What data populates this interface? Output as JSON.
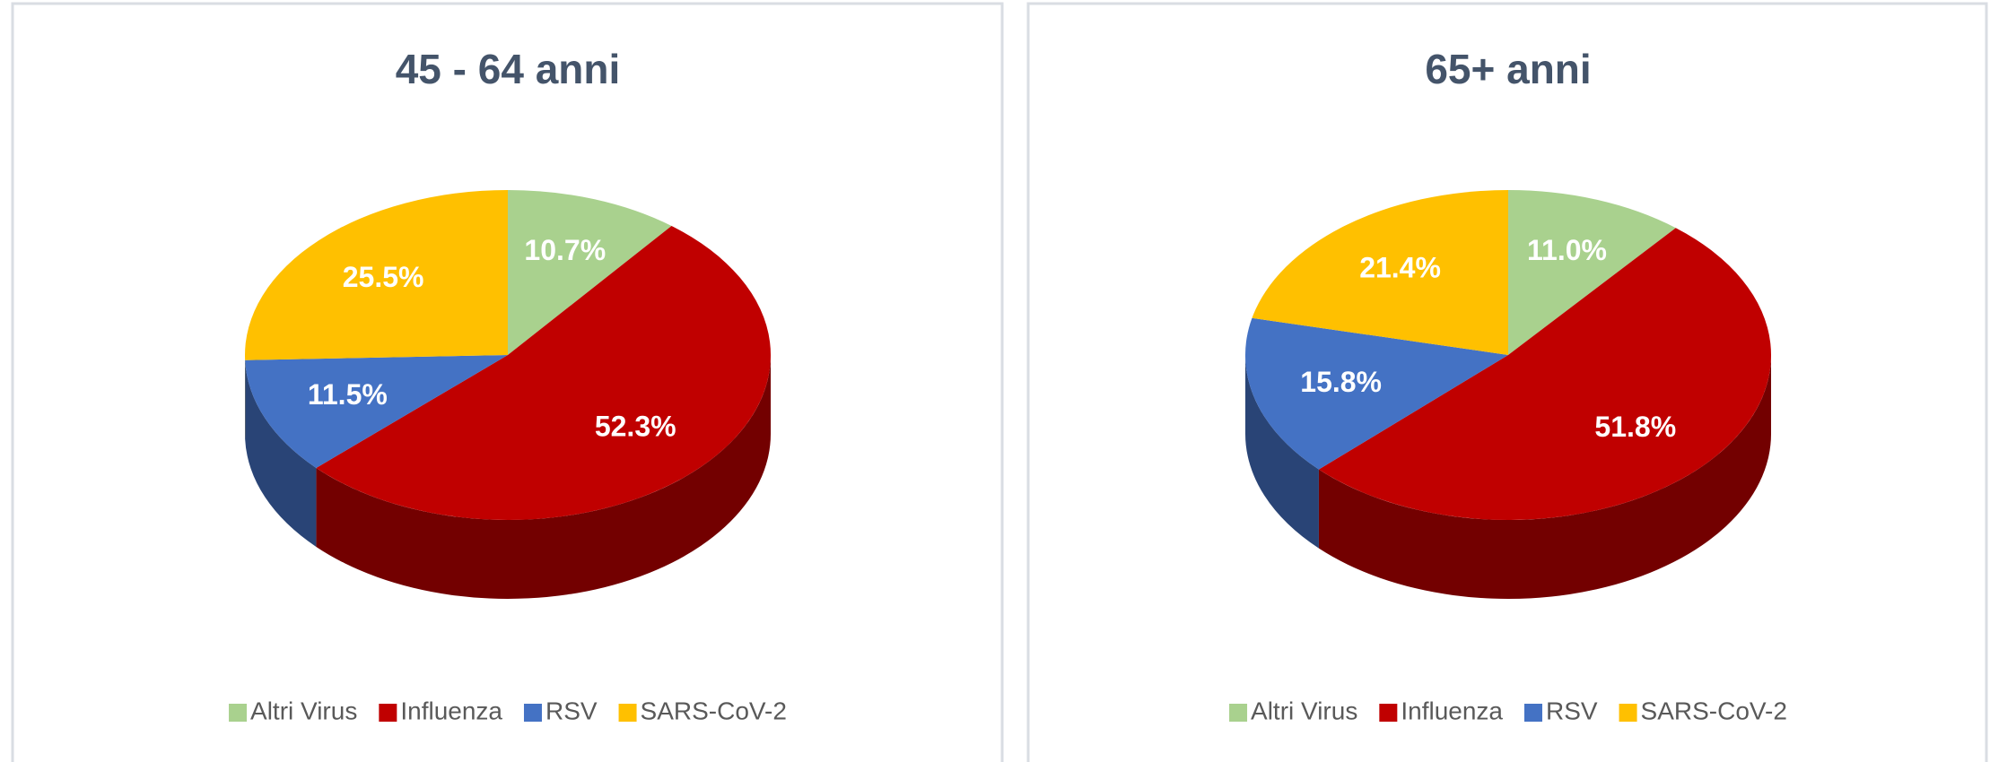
{
  "chart_data": [
    {
      "type": "pie",
      "title": "45 - 64 anni",
      "categories": [
        "Altri Virus",
        "Influenza",
        "RSV",
        "SARS-CoV-2"
      ],
      "values": [
        10.7,
        52.3,
        11.5,
        25.5
      ],
      "value_labels": [
        "10.7%",
        "52.3%",
        "11.5%",
        "25.5%"
      ],
      "colors": [
        "#a9d18e",
        "#c00000",
        "#4472c4",
        "#ffc000"
      ],
      "legend": "bottom"
    },
    {
      "type": "pie",
      "title": "65+ anni",
      "categories": [
        "Altri Virus",
        "Influenza",
        "RSV",
        "SARS-CoV-2"
      ],
      "values": [
        11.0,
        51.8,
        15.8,
        21.4
      ],
      "value_labels": [
        "11.0%",
        "51.8%",
        "15.8%",
        "21.4%"
      ],
      "colors": [
        "#a9d18e",
        "#c00000",
        "#4472c4",
        "#ffc000"
      ],
      "legend": "bottom"
    }
  ]
}
